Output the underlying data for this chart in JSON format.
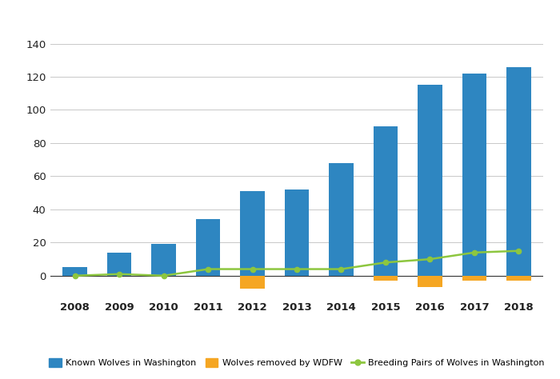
{
  "years": [
    2008,
    2009,
    2010,
    2011,
    2012,
    2013,
    2014,
    2015,
    2016,
    2017,
    2018
  ],
  "known_wolves": [
    5,
    14,
    19,
    34,
    51,
    52,
    68,
    90,
    115,
    122,
    126
  ],
  "wolves_removed": [
    0,
    0,
    0,
    0,
    -8,
    0,
    0,
    -3,
    -7,
    -3,
    -3
  ],
  "breeding_pairs": [
    0,
    1,
    0,
    4,
    4,
    4,
    4,
    8,
    10,
    14,
    15
  ],
  "bar_color_blue": "#2E86C1",
  "bar_color_orange": "#F5A623",
  "line_color": "#8DC63F",
  "background_color": "#FFFFFF",
  "grid_color": "#C8C8C8",
  "ylim": [
    -12,
    148
  ],
  "yticks": [
    0,
    20,
    40,
    60,
    80,
    100,
    120,
    140
  ],
  "legend_labels": [
    "Known Wolves in Washington",
    "Wolves removed by WDFW",
    "Breeding Pairs of Wolves in Washington"
  ],
  "bar_width": 0.55
}
